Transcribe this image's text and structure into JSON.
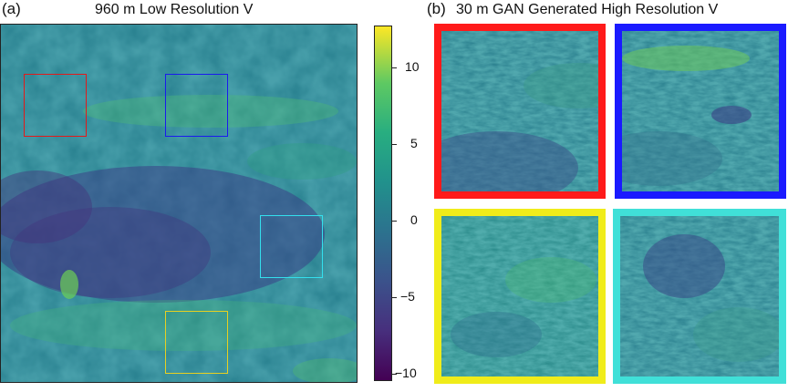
{
  "panel_a": {
    "label": "(a)",
    "title": "960 m Low Resolution V"
  },
  "panel_b": {
    "label": "(b)",
    "title": "30 m GAN Generated High Resolution V"
  },
  "colorbar": {
    "ticks": [
      "10",
      "5",
      "0",
      "−5",
      "−10"
    ],
    "colormap": "viridis"
  },
  "regions": [
    {
      "name": "red",
      "color": "#ff1a1a"
    },
    {
      "name": "blue",
      "color": "#1a1aff"
    },
    {
      "name": "cyan",
      "color": "#33e0e0"
    },
    {
      "name": "yellow",
      "color": "#e8e020"
    }
  ]
}
